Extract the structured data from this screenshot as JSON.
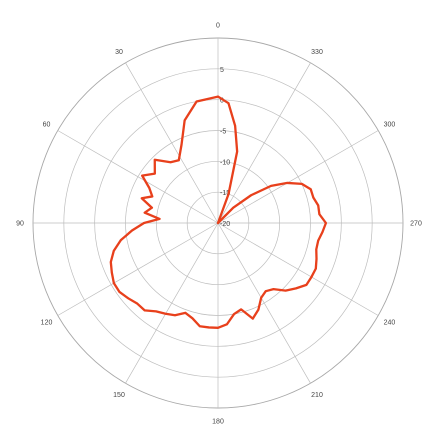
{
  "chart_data": {
    "type": "polar-line",
    "title": "",
    "angle_direction": "counterclockwise",
    "zero_at": "top",
    "angle_ticks": [
      "0",
      "30",
      "60",
      "90",
      "120",
      "150",
      "180",
      "210",
      "240",
      "270",
      "300",
      "330"
    ],
    "radial_ticks": [
      "5",
      "0",
      "-5",
      "-10",
      "-15",
      "-20"
    ],
    "rlim": [
      -20,
      10
    ],
    "grid": true,
    "legend": "none",
    "colors": {
      "line": "#e8401c",
      "grid": "#bdbdbd",
      "text": "#444444"
    },
    "series": [
      {
        "angles": [
          0,
          10,
          18,
          25,
          32,
          38,
          45,
          52,
          58,
          63,
          68,
          72,
          77,
          82,
          86,
          90,
          95,
          100,
          105,
          110,
          115,
          120,
          125,
          130,
          135,
          140,
          145,
          150,
          155,
          160,
          165,
          170,
          175,
          180,
          185,
          190,
          195,
          200,
          205,
          210,
          215,
          220,
          225,
          230,
          235,
          240,
          245,
          250,
          255,
          260,
          265,
          270,
          275,
          280,
          285,
          290,
          295,
          300,
          305,
          310,
          315,
          320,
          325,
          330,
          335,
          340,
          345,
          350,
          355
        ],
        "values": [
          0.5,
          0.0,
          -2.5,
          -6.0,
          -8.0,
          -7.5,
          -5.5,
          -7.0,
          -5.5,
          -7.5,
          -8.5,
          -7.0,
          -9.0,
          -8.0,
          -10.5,
          -8.0,
          -6.0,
          -4.0,
          -2.5,
          -1.5,
          -1.0,
          -0.5,
          -0.5,
          -1.0,
          -1.5,
          -1.5,
          -2.5,
          -3.0,
          -3.5,
          -4.5,
          -4.0,
          -3.0,
          -3.0,
          -3.0,
          -3.5,
          -5.0,
          -5.5,
          -3.5,
          -4.5,
          -6.0,
          -6.5,
          -6.0,
          -4.5,
          -3.5,
          -2.5,
          -2.5,
          -2.5,
          -3.0,
          -3.5,
          -3.5,
          -3.0,
          -2.5,
          -3.5,
          -3.5,
          -4.0,
          -4.0,
          -5.0,
          -7.0,
          -9.5,
          -13.0,
          -16.5,
          -20.0,
          -20.0,
          -20.0,
          -20.0,
          -15.0,
          -8.0,
          -4.0,
          -0.5
        ]
      }
    ]
  }
}
